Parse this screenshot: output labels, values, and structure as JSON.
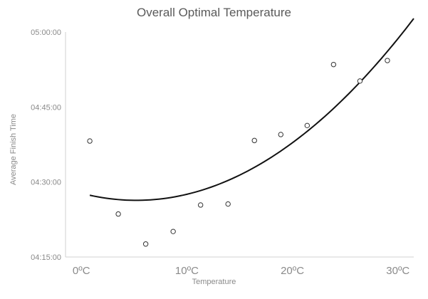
{
  "chart_data": {
    "type": "scatter",
    "title": "Overall Optimal Temperature",
    "xlabel": "Temperature",
    "ylabel": "Average Finish Time",
    "x_ticks": [
      {
        "value": 0,
        "label": "0ºC"
      },
      {
        "value": 10,
        "label": "10ºC"
      },
      {
        "value": 20,
        "label": "20ºC"
      },
      {
        "value": 30,
        "label": "30ºC"
      }
    ],
    "y_ticks": [
      {
        "value": 255,
        "label": "04:15:00"
      },
      {
        "value": 270,
        "label": "04:30:00"
      },
      {
        "value": 285,
        "label": "04:45:00"
      },
      {
        "value": 300,
        "label": "05:00:00"
      }
    ],
    "xlim": [
      -1.5,
      31.5
    ],
    "ylim": [
      255,
      300
    ],
    "grid": false,
    "legend": "none",
    "series": [
      {
        "marker": "open-circle",
        "points": [
          {
            "x": 0.8,
            "y": 278.2
          },
          {
            "x": 3.5,
            "y": 263.6
          },
          {
            "x": 6.1,
            "y": 257.6
          },
          {
            "x": 8.7,
            "y": 260.1
          },
          {
            "x": 11.3,
            "y": 265.4
          },
          {
            "x": 13.9,
            "y": 265.6
          },
          {
            "x": 16.4,
            "y": 278.3
          },
          {
            "x": 18.9,
            "y": 279.5
          },
          {
            "x": 21.4,
            "y": 281.3
          },
          {
            "x": 23.9,
            "y": 293.5
          },
          {
            "x": 26.4,
            "y": 290.2
          },
          {
            "x": 29.0,
            "y": 294.3
          }
        ]
      },
      {
        "type": "trendline",
        "style": "polynomial",
        "color": "#111111",
        "coefficients": [
          267.76,
          -0.5476,
          0.0526
        ],
        "x_range": [
          0.8,
          31.5
        ]
      }
    ]
  }
}
